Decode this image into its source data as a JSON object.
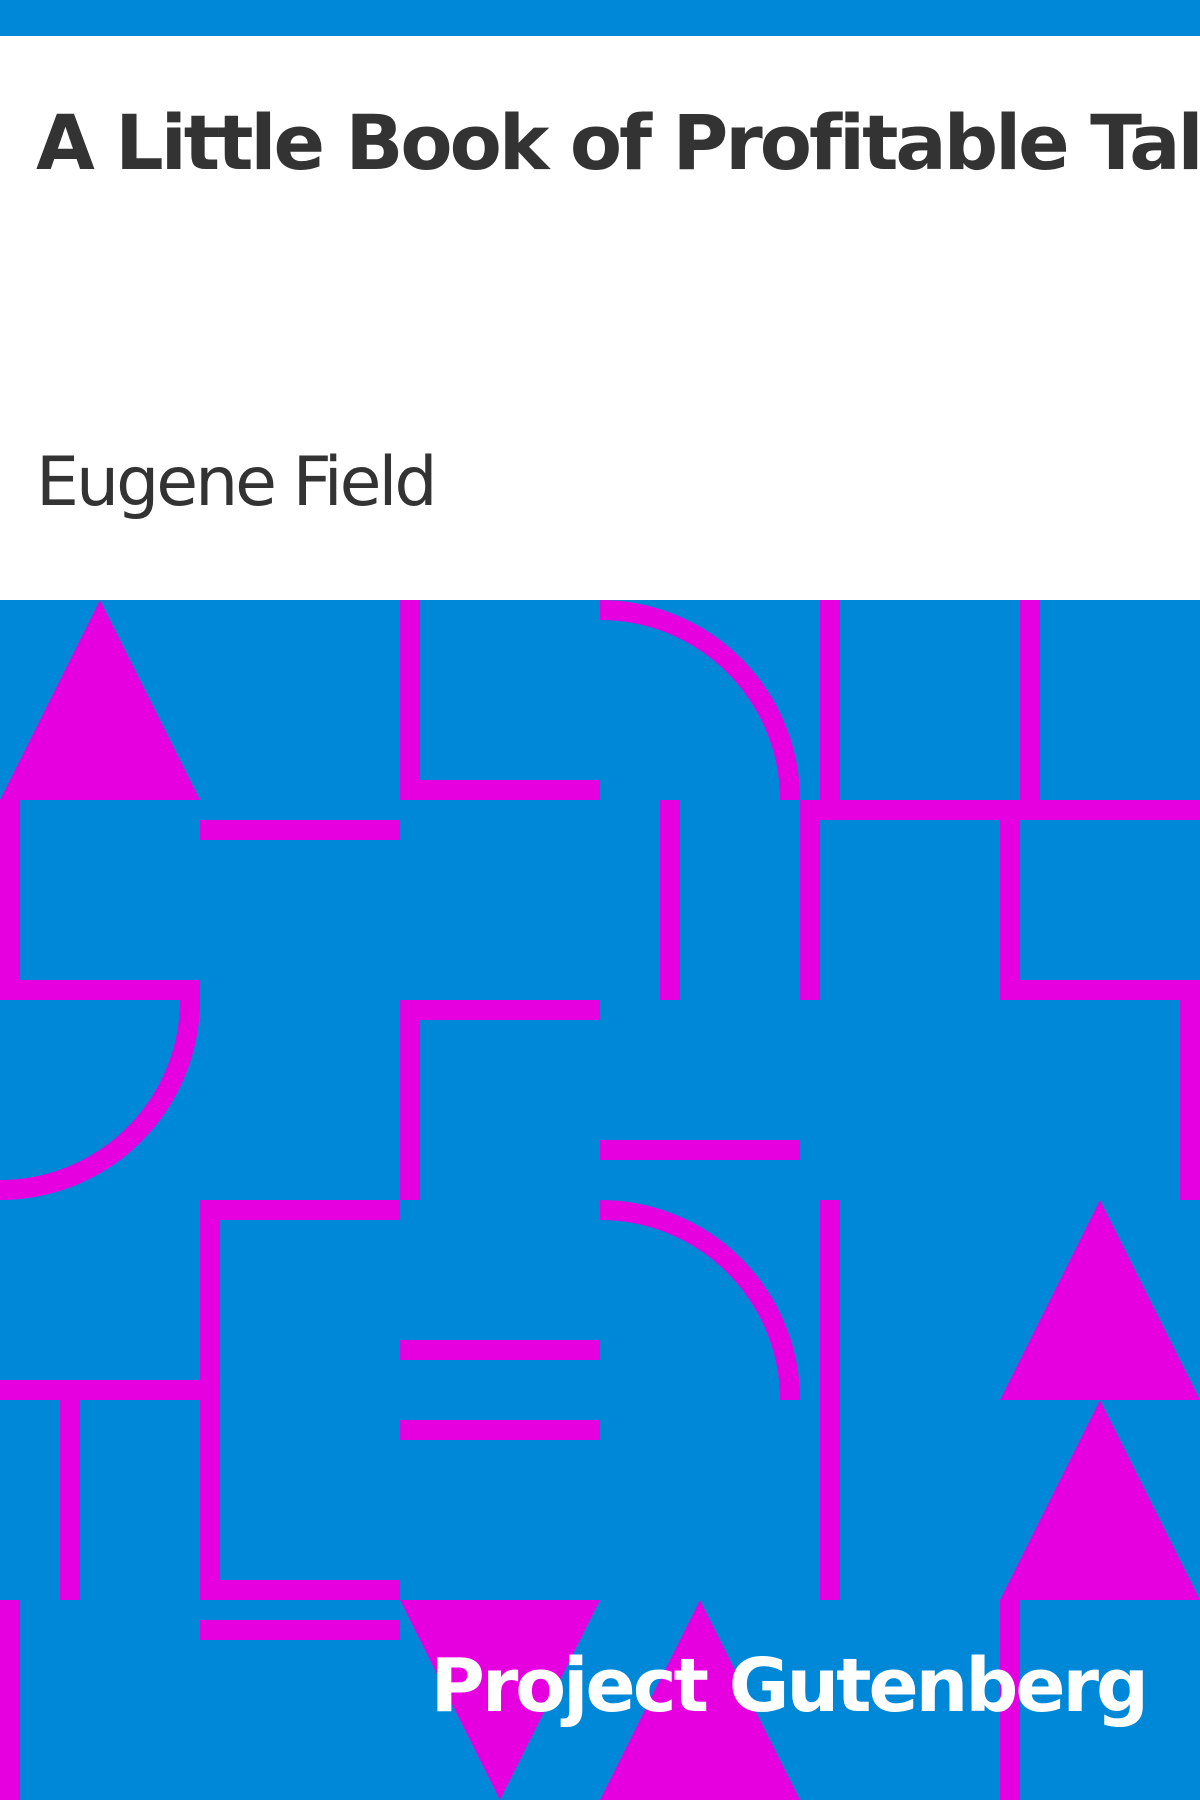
{
  "cover": {
    "title": "A Little Book of Profitable Tales",
    "author": "Eugene Field",
    "publisher": "Project Gutenberg"
  },
  "colors": {
    "background": "#0088d8",
    "pattern": "#e600e0",
    "text_dark": "#333333",
    "text_light": "#ffffff"
  }
}
